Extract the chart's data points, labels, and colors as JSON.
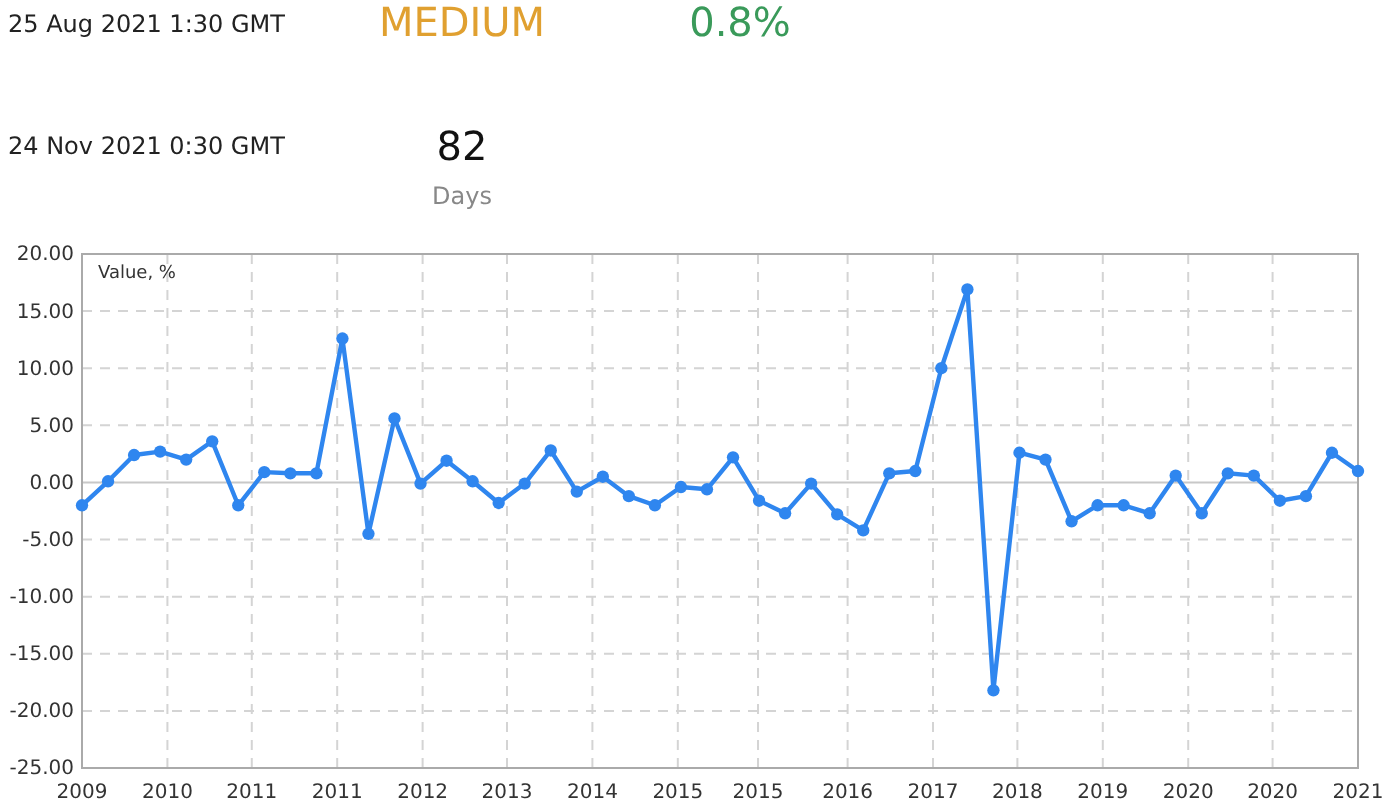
{
  "chart_data": {
    "type": "line",
    "annotations": [
      "25 Aug 2021 1:30 GMT",
      "MEDIUM",
      "0.8%",
      "24 Nov 2021 0:30 GMT",
      "82",
      "Days"
    ],
    "ylabel": "Value, %",
    "x": [
      2009,
      2009.25,
      2009.5,
      2009.75,
      2010,
      2010.25,
      2010.5,
      2010.75,
      2011,
      2011.25,
      2011.5,
      2011.75,
      2012,
      2012.25,
      2012.5,
      2012.75,
      2013,
      2013.25,
      2013.5,
      2013.75,
      2014,
      2014.25,
      2014.5,
      2014.75,
      2015,
      2015.25,
      2015.5,
      2015.75,
      2016,
      2016.25,
      2016.5,
      2016.75,
      2017,
      2017.25,
      2017.5,
      2017.75,
      2018,
      2018.25,
      2018.5,
      2018.75,
      2019,
      2019.25,
      2019.5,
      2019.75,
      2020,
      2020.25,
      2020.5,
      2020.75,
      2021,
      2021.25
    ],
    "series": [
      {
        "color": "#2f86ef",
        "values": [
          -2.0,
          0.1,
          2.4,
          2.7,
          2.0,
          3.6,
          -2.0,
          0.9,
          0.8,
          0.8,
          12.6,
          -4.5,
          5.6,
          -0.1,
          1.9,
          0.1,
          -1.8,
          -0.1,
          2.8,
          -0.8,
          0.5,
          -1.2,
          -2.0,
          -0.4,
          -0.6,
          2.2,
          -1.6,
          -2.7,
          -0.1,
          -2.8,
          -4.2,
          0.8,
          1.0,
          10.0,
          16.9,
          -18.2,
          2.6,
          2.0,
          -3.4,
          -2.0,
          -2.0,
          -2.7,
          0.6,
          -2.7,
          0.8,
          0.6,
          -1.6,
          -1.2,
          2.6,
          1.0
        ]
      }
    ],
    "xlim": [
      2009,
      2021.25
    ],
    "xticks": [
      {
        "value": 2009,
        "label": "2009"
      },
      {
        "value": 2009.82,
        "label": "2010"
      },
      {
        "value": 2010.63,
        "label": "2011"
      },
      {
        "value": 2011.45,
        "label": "2011"
      },
      {
        "value": 2012.27,
        "label": "2012"
      },
      {
        "value": 2013.08,
        "label": "2013"
      },
      {
        "value": 2013.9,
        "label": "2014"
      },
      {
        "value": 2014.72,
        "label": "2015"
      },
      {
        "value": 2015.49,
        "label": "2015"
      },
      {
        "value": 2016.35,
        "label": "2016"
      },
      {
        "value": 2017.17,
        "label": "2017"
      },
      {
        "value": 2017.98,
        "label": "2018"
      },
      {
        "value": 2018.8,
        "label": "2019"
      },
      {
        "value": 2019.62,
        "label": "2020"
      },
      {
        "value": 2020.43,
        "label": "2020"
      },
      {
        "value": 2021.25,
        "label": "2021"
      }
    ],
    "ylim": [
      -25,
      20
    ],
    "yticks": [
      {
        "value": -25,
        "label": "-25.00"
      },
      {
        "value": -20,
        "label": "-20.00"
      },
      {
        "value": -15,
        "label": "-15.00"
      },
      {
        "value": -10,
        "label": "-10.00"
      },
      {
        "value": -5,
        "label": "-5.00"
      },
      {
        "value": 0,
        "label": "0.00"
      },
      {
        "value": 5,
        "label": "5.00"
      },
      {
        "value": 10,
        "label": "10.00"
      },
      {
        "value": 15,
        "label": "15.00"
      },
      {
        "value": 20,
        "label": "20.00"
      }
    ],
    "grid": true,
    "marker": "circle",
    "line_style": "solid"
  }
}
